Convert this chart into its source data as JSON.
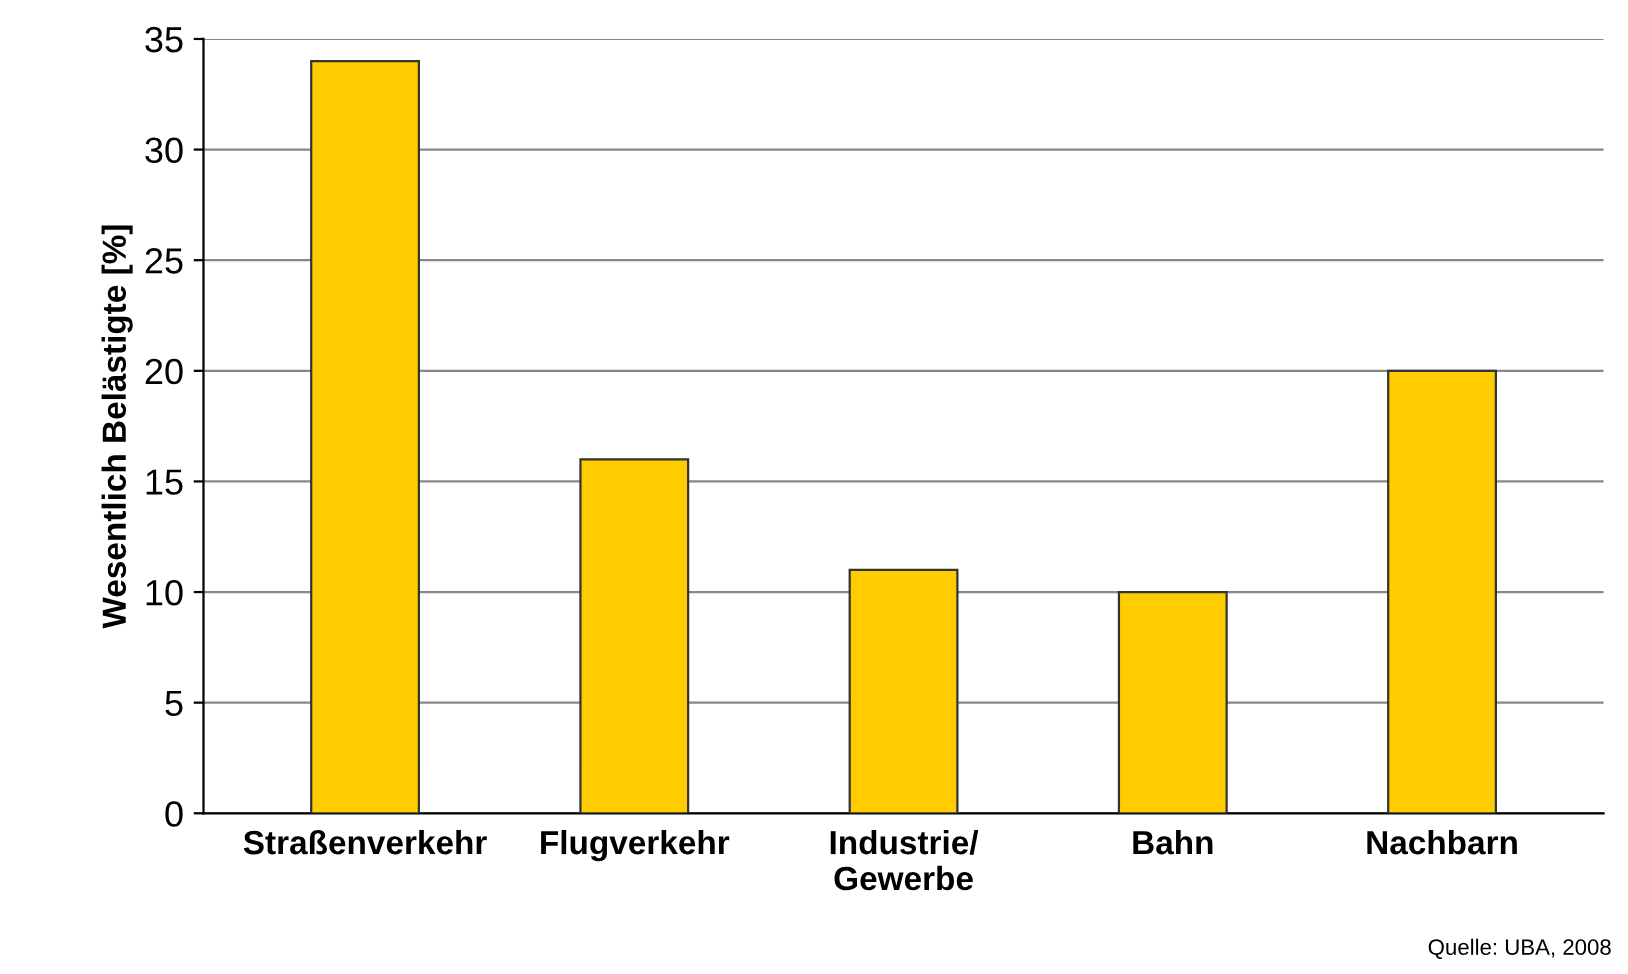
{
  "chart_data": {
    "type": "bar",
    "ylabel": "Wesentlich Belästigte [%]",
    "categories": [
      "Straßenverkehr",
      "Flugverkehr",
      "Industrie/\nGewerbe",
      "Bahn",
      "Nachbarn"
    ],
    "values": [
      34,
      16,
      11,
      10,
      20
    ],
    "color": "#ffcc00",
    "ylim": [
      0,
      35
    ],
    "yticks": [
      0,
      5,
      10,
      15,
      20,
      25,
      30,
      35
    ],
    "grid": "y",
    "annotations": [
      "Quelle: UBA, 2008"
    ]
  }
}
